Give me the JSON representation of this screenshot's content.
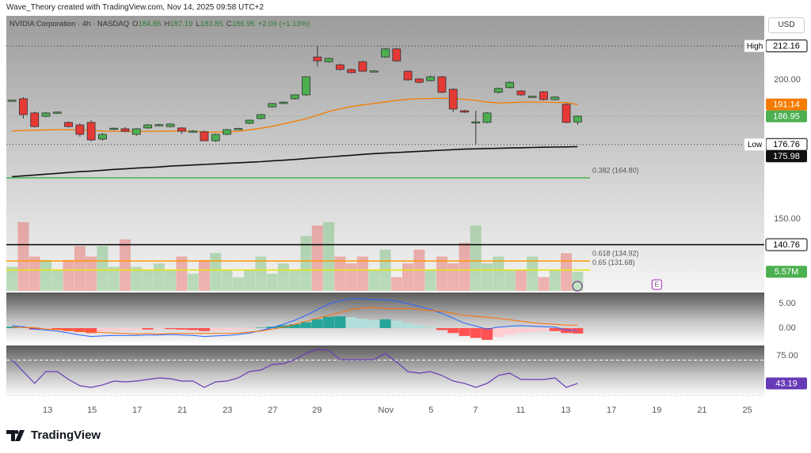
{
  "header": {
    "text": "Wave_Theory created with TradingView.com, Nov 14, 2025 09:58 UTC+2"
  },
  "footer": {
    "brand": "TradingView"
  },
  "toolbar": {
    "currency": "USD"
  },
  "chart_data": {
    "type": "candlestick",
    "legend": {
      "symbol": "NVIDIA Corporation · 4h · NASDAQ",
      "ohlc_labels": [
        "O",
        "H",
        "L",
        "C"
      ],
      "change": "+2.09 (+1.13%)"
    },
    "xlim": [
      -0.5,
      66.5
    ],
    "xticks": [
      {
        "value": 3.15,
        "label": "13"
      },
      {
        "value": 7.07,
        "label": "15"
      },
      {
        "value": 11.06,
        "label": "17"
      },
      {
        "value": 15.06,
        "label": "21"
      },
      {
        "value": 19.05,
        "label": "23"
      },
      {
        "value": 23.04,
        "label": "27"
      },
      {
        "value": 26.96,
        "label": "29"
      },
      {
        "value": 33.05,
        "label": "Nov"
      },
      {
        "value": 37.04,
        "label": "5"
      },
      {
        "value": 40.97,
        "label": "7"
      },
      {
        "value": 44.96,
        "label": "11"
      },
      {
        "value": 48.95,
        "label": "13"
      },
      {
        "value": 53.0,
        "label": "17"
      },
      {
        "value": 57.0,
        "label": "19"
      },
      {
        "value": 61.0,
        "label": "21"
      },
      {
        "value": 65.0,
        "label": "25"
      }
    ],
    "ylim": [
      124.15,
      223
    ],
    "yticks": [
      {
        "value": 150,
        "label": "150.00"
      },
      {
        "value": 200,
        "label": "200.00"
      }
    ],
    "up_color": "#4caf50",
    "down_color": "#e53935",
    "doji_color": "#9e9e9e",
    "candles": [
      [
        192.6,
        193.0,
        192.3,
        192.7
      ],
      [
        193.2,
        193.8,
        186.1,
        187.5
      ],
      [
        188.1,
        188.6,
        182.9,
        183.2
      ],
      [
        186.9,
        188.4,
        186.5,
        188.1
      ],
      [
        188.3,
        188.6,
        187.9,
        188.4
      ],
      [
        184.7,
        185.0,
        182.9,
        183.2
      ],
      [
        183.8,
        184.4,
        179.6,
        180.4
      ],
      [
        184.7,
        185.5,
        177.9,
        178.4
      ],
      [
        178.7,
        180.9,
        178.1,
        180.4
      ],
      [
        182.4,
        182.9,
        181.9,
        182.6
      ],
      [
        182.4,
        183.0,
        181.2,
        181.5
      ],
      [
        180.4,
        182.7,
        179.9,
        182.4
      ],
      [
        182.7,
        184.1,
        182.4,
        183.8
      ],
      [
        183.8,
        184.2,
        183.3,
        183.9
      ],
      [
        183.2,
        184.4,
        182.9,
        184.1
      ],
      [
        182.7,
        183.0,
        180.5,
        181.5
      ],
      [
        181.5,
        181.9,
        181.0,
        181.6
      ],
      [
        181.3,
        181.8,
        178.0,
        178.1
      ],
      [
        178.1,
        180.7,
        177.6,
        180.4
      ],
      [
        180.4,
        182.4,
        180.1,
        182.1
      ],
      [
        182.4,
        182.8,
        182.1,
        182.5
      ],
      [
        184.4,
        185.7,
        184.1,
        185.5
      ],
      [
        186.1,
        187.7,
        185.8,
        187.5
      ],
      [
        190.3,
        191.6,
        190.0,
        191.5
      ],
      [
        191.5,
        192.2,
        191.2,
        192.0
      ],
      [
        193.2,
        194.8,
        192.9,
        194.6
      ],
      [
        194.6,
        201.3,
        194.2,
        201.1
      ],
      [
        208.2,
        212.16,
        204.8,
        206.8
      ],
      [
        206.5,
        207.9,
        206.2,
        207.7
      ],
      [
        205.4,
        205.8,
        203.4,
        203.7
      ],
      [
        203.7,
        204.0,
        202.3,
        202.6
      ],
      [
        206.5,
        206.9,
        202.8,
        203.1
      ],
      [
        203.1,
        203.4,
        202.8,
        203.2
      ],
      [
        208.2,
        211.4,
        207.9,
        211.1
      ],
      [
        211.1,
        211.4,
        206.5,
        206.8
      ],
      [
        203.1,
        203.4,
        199.7,
        200.0
      ],
      [
        200.3,
        200.6,
        198.8,
        199.1
      ],
      [
        199.7,
        201.5,
        199.4,
        201.1
      ],
      [
        201.1,
        201.4,
        195.2,
        195.5
      ],
      [
        196.6,
        196.9,
        188.4,
        189.5
      ],
      [
        188.9,
        189.2,
        188.1,
        188.4
      ],
      [
        184.7,
        188.9,
        176.76,
        184.9
      ],
      [
        184.7,
        188.4,
        184.4,
        188.1
      ],
      [
        195.5,
        197.2,
        195.2,
        196.9
      ],
      [
        197.2,
        199.4,
        196.9,
        199.1
      ],
      [
        196.0,
        196.3,
        194.3,
        194.6
      ],
      [
        194.0,
        194.3,
        193.7,
        194.1
      ],
      [
        195.7,
        196.0,
        192.6,
        192.9
      ],
      [
        192.9,
        194.1,
        192.6,
        193.8
      ],
      [
        191.2,
        191.6,
        184.4,
        184.7
      ],
      [
        184.86,
        187.19,
        183.85,
        186.95
      ]
    ],
    "ema": {
      "color": "#f57c00",
      "values": [
        181.6,
        181.8,
        181.9,
        182.0,
        182.1,
        182.1,
        182.0,
        181.8,
        181.6,
        181.5,
        181.5,
        181.4,
        181.5,
        181.5,
        181.6,
        181.6,
        181.5,
        181.3,
        181.2,
        181.3,
        181.5,
        182.0,
        182.6,
        183.3,
        184.2,
        185.1,
        186.0,
        187.3,
        188.6,
        189.6,
        190.4,
        191.0,
        191.5,
        192.1,
        192.6,
        193.0,
        193.2,
        193.3,
        193.4,
        193.3,
        193.0,
        192.6,
        192.0,
        191.7,
        191.8,
        192.0,
        192.0,
        192.0,
        191.9,
        191.8,
        191.14
      ]
    },
    "sma": {
      "color": "#111111",
      "values": [
        165.2,
        165.5,
        165.8,
        166.1,
        166.4,
        166.7,
        167.0,
        167.2,
        167.5,
        167.8,
        168.0,
        168.3,
        168.5,
        168.7,
        169.0,
        169.2,
        169.4,
        169.6,
        169.8,
        170.0,
        170.2,
        170.4,
        170.6,
        170.9,
        171.1,
        171.4,
        171.7,
        172.0,
        172.3,
        172.6,
        172.9,
        173.2,
        173.5,
        173.7,
        173.9,
        174.1,
        174.3,
        174.5,
        174.7,
        174.9,
        175.1,
        175.2,
        175.3,
        175.4,
        175.5,
        175.6,
        175.7,
        175.8,
        175.85,
        175.9,
        175.98
      ]
    },
    "volume": {
      "ylim": [
        0,
        80
      ],
      "last_label": "5.57M",
      "values": [
        7,
        20,
        10,
        9,
        6,
        9,
        13,
        10,
        13,
        7,
        15,
        7,
        6,
        8,
        6,
        10,
        5,
        9,
        11,
        6,
        4,
        6,
        10,
        5,
        8,
        6,
        16,
        19,
        20,
        10,
        8,
        10,
        6,
        12,
        4,
        8,
        12,
        6,
        10,
        8,
        14,
        19,
        8,
        10,
        6,
        6,
        10,
        4,
        6,
        11,
        5.57
      ]
    },
    "levels": [
      {
        "value": 212.16,
        "tag": "High",
        "color": "#333333",
        "style": "dotted",
        "axis_badge": true
      },
      {
        "value": 176.76,
        "tag": "Low",
        "color": "#333333",
        "style": "dotted",
        "axis_badge": true
      },
      {
        "value": 164.8,
        "label": "0.382 (164.80)",
        "color": "#4caf50",
        "style": "solid",
        "axis_badge": false
      },
      {
        "value": 140.76,
        "color": "#000000",
        "style": "solid",
        "axis_badge": true
      },
      {
        "value": 134.92,
        "label": "0.618 (134.92)",
        "color": "#ff9800",
        "style": "solid",
        "axis_badge": false
      },
      {
        "value": 131.68,
        "label": "0.65 (131.68)",
        "color": "#e8e800",
        "style": "solid",
        "axis_badge": false
      }
    ],
    "events": [
      {
        "x": 57,
        "label": "E"
      }
    ],
    "macd": {
      "ylim": [
        -2.9,
        7.26
      ],
      "yticks": [
        {
          "value": 5,
          "label": "5.00"
        },
        {
          "value": 0,
          "label": "0.00"
        }
      ],
      "macd_color": "#2962ff",
      "signal_color": "#ff6d00",
      "histogram": [
        0.3,
        0.2,
        -0.3,
        -0.2,
        -0.3,
        -0.6,
        -0.8,
        -1.0,
        -0.7,
        -0.5,
        -0.4,
        -0.3,
        -0.3,
        -0.2,
        -0.2,
        -0.3,
        -0.4,
        -0.6,
        -0.5,
        -0.4,
        -0.3,
        -0.2,
        0.1,
        0.3,
        0.6,
        0.8,
        1.2,
        1.8,
        2.3,
        2.4,
        2.2,
        1.9,
        1.6,
        1.8,
        1.5,
        1.0,
        0.6,
        0.2,
        -0.4,
        -1.0,
        -1.6,
        -2.0,
        -2.4,
        -1.8,
        -1.3,
        -0.9,
        -0.7,
        -0.6,
        -0.6,
        -1.0,
        -1.1
      ],
      "macd": [
        0.5,
        0.3,
        -0.2,
        -0.4,
        -0.6,
        -1.0,
        -1.4,
        -1.7,
        -1.6,
        -1.5,
        -1.5,
        -1.5,
        -1.4,
        -1.4,
        -1.3,
        -1.4,
        -1.5,
        -1.7,
        -1.6,
        -1.5,
        -1.3,
        -1.0,
        -0.5,
        0.1,
        0.8,
        1.6,
        2.6,
        3.8,
        4.9,
        5.6,
        6.0,
        6.0,
        5.8,
        5.8,
        5.5,
        5.0,
        4.4,
        3.8,
        3.0,
        2.0,
        1.0,
        0.4,
        -0.2,
        0.2,
        0.4,
        0.5,
        0.4,
        0.3,
        0.2,
        -0.4,
        -0.5
      ],
      "signal": [
        0.2,
        0.1,
        0.1,
        -0.2,
        -0.3,
        -0.4,
        -0.6,
        -0.7,
        -0.9,
        -1.0,
        -1.1,
        -1.2,
        -1.1,
        -1.2,
        -1.1,
        -1.1,
        -1.1,
        -1.1,
        -1.1,
        -1.1,
        -1.0,
        -0.8,
        -0.6,
        -0.2,
        0.2,
        0.8,
        1.4,
        2.0,
        2.6,
        3.2,
        3.8,
        4.1,
        4.2,
        4.0,
        4.0,
        4.0,
        3.8,
        3.6,
        3.4,
        3.0,
        2.6,
        2.4,
        2.2,
        2.0,
        1.7,
        1.4,
        1.1,
        0.9,
        0.8,
        0.6,
        0.6
      ]
    },
    "rsi": {
      "ylim": [
        29.5,
        86.8
      ],
      "yticks": [
        {
          "value": 75,
          "label": "75.00"
        }
      ],
      "bands": [
        70,
        30
      ],
      "color": "#673ab7",
      "values": [
        70.5,
        56.8,
        43.2,
        56.8,
        56.8,
        47.7,
        40.5,
        38.6,
        41.4,
        45.9,
        45.0,
        45.9,
        47.7,
        49.5,
        48.6,
        45.9,
        45.9,
        38.6,
        45.0,
        45.9,
        49.5,
        56.8,
        58.6,
        65.0,
        65.9,
        70.5,
        77.7,
        82.3,
        81.4,
        70.5,
        70.5,
        70.5,
        70.5,
        77.7,
        67.7,
        56.8,
        55.0,
        56.8,
        52.3,
        45.9,
        43.2,
        38.6,
        43.2,
        52.3,
        55.0,
        47.7,
        47.7,
        47.7,
        49.5,
        38.6,
        43.19
      ]
    }
  }
}
